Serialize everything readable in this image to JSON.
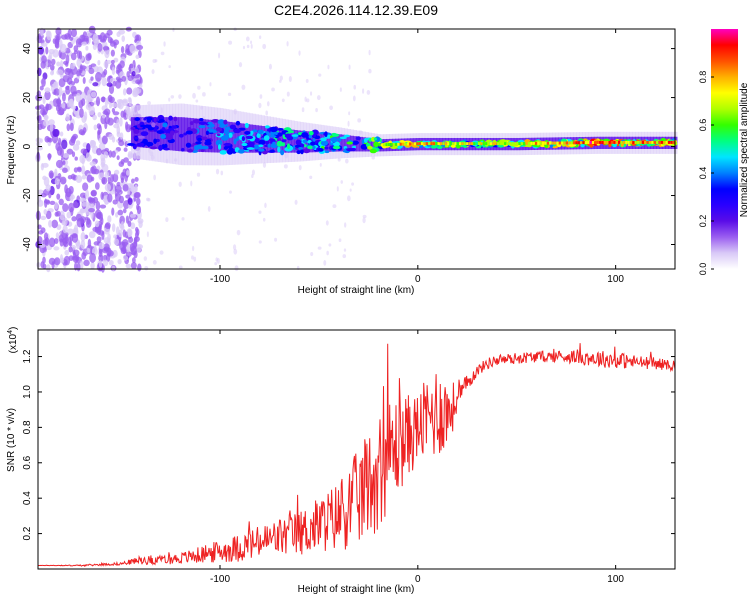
{
  "title": "C2E4.2026.114.12.39.E09",
  "chart_data": [
    {
      "type": "heatmap",
      "title": "C2E4.2026.114.12.39.E09",
      "xlabel": "Height of straight line (km)",
      "ylabel": "Frequency (Hz)",
      "xlim": [
        -192,
        130
      ],
      "ylim": [
        -50,
        48
      ],
      "xticks": [
        -100,
        0,
        100
      ],
      "yticks": [
        -40,
        -20,
        0,
        20,
        40
      ],
      "xtick_labels": [
        "-100",
        "0",
        "100"
      ],
      "ytick_labels": [
        "-40",
        "-20",
        "0",
        "20",
        "40"
      ],
      "colorbar": {
        "label": "Normalized spectral amplitude",
        "range": [
          0.0,
          1.0
        ],
        "ticks": [
          0.0,
          0.2,
          0.4,
          0.6,
          0.8
        ],
        "tick_labels": [
          "0.0",
          "0.2",
          "0.4",
          "0.6",
          "0.8"
        ],
        "colormap": [
          "#ffffff",
          "#d9c9f7",
          "#9a5ef0",
          "#5a0ce8",
          "#2a00ff",
          "#0000ff",
          "#0080ff",
          "#00e5ff",
          "#00ff80",
          "#33ff00",
          "#b0ff00",
          "#ffff00",
          "#ffb000",
          "#ff5000",
          "#ff0000",
          "#ff00c0"
        ]
      },
      "signal_band": [
        {
          "x": -145,
          "center": 6,
          "width": 12,
          "level": 0.3
        },
        {
          "x": -120,
          "center": 5,
          "width": 14,
          "level": 0.35
        },
        {
          "x": -100,
          "center": 4,
          "width": 13,
          "level": 0.4
        },
        {
          "x": -80,
          "center": 3,
          "width": 11,
          "level": 0.42
        },
        {
          "x": -60,
          "center": 2,
          "width": 9,
          "level": 0.45
        },
        {
          "x": -40,
          "center": 1.5,
          "width": 7,
          "level": 0.5
        },
        {
          "x": -20,
          "center": 0.5,
          "width": 5,
          "level": 0.6
        },
        {
          "x": 0,
          "center": 1,
          "width": 5,
          "level": 0.75
        },
        {
          "x": 20,
          "center": 1,
          "width": 5,
          "level": 0.6
        },
        {
          "x": 50,
          "center": 1,
          "width": 5,
          "level": 0.65
        },
        {
          "x": 90,
          "center": 1.5,
          "width": 5,
          "level": 0.8
        },
        {
          "x": 130,
          "center": 1.5,
          "width": 5,
          "level": 0.7
        }
      ]
    },
    {
      "type": "line",
      "xlabel": "Height of straight line (km)",
      "ylabel": "SNR (10 * v/v)",
      "multiplier_label": "(x10",
      "multiplier_exp": "4",
      "multiplier_close": ")",
      "xlim": [
        -192,
        130
      ],
      "ylim": [
        0,
        1.35
      ],
      "xticks": [
        -100,
        0,
        100
      ],
      "yticks": [
        0.2,
        0.4,
        0.6,
        0.8,
        1.0,
        1.2
      ],
      "xtick_labels": [
        "-100",
        "0",
        "100"
      ],
      "ytick_labels": [
        "0.2",
        "0.4",
        "0.6",
        "0.8",
        "1.0",
        "1.2"
      ],
      "color": "#ee2222",
      "series": [
        {
          "name": "SNR",
          "x": [
            -192,
            -170,
            -150,
            -140,
            -130,
            -120,
            -110,
            -100,
            -90,
            -80,
            -70,
            -60,
            -50,
            -40,
            -35,
            -30,
            -25,
            -20,
            -15,
            -10,
            -5,
            0,
            5,
            10,
            15,
            20,
            25,
            30,
            35,
            40,
            50,
            60,
            70,
            80,
            90,
            100,
            110,
            120,
            130
          ],
          "y": [
            0.02,
            0.02,
            0.03,
            0.05,
            0.05,
            0.06,
            0.08,
            0.1,
            0.12,
            0.15,
            0.18,
            0.2,
            0.25,
            0.3,
            0.35,
            0.4,
            0.48,
            0.55,
            0.65,
            0.7,
            0.75,
            0.8,
            0.85,
            0.9,
            0.88,
            0.95,
            1.05,
            1.12,
            1.16,
            1.18,
            1.19,
            1.2,
            1.2,
            1.2,
            1.19,
            1.18,
            1.17,
            1.16,
            1.15
          ],
          "noise": [
            0.0,
            0.005,
            0.01,
            0.03,
            0.03,
            0.04,
            0.06,
            0.08,
            0.1,
            0.12,
            0.14,
            0.16,
            0.2,
            0.25,
            0.3,
            0.35,
            0.38,
            0.42,
            0.4,
            0.35,
            0.3,
            0.25,
            0.3,
            0.35,
            0.25,
            0.12,
            0.06,
            0.04,
            0.04,
            0.04,
            0.04,
            0.04,
            0.04,
            0.05,
            0.06,
            0.06,
            0.05,
            0.04,
            0.04
          ]
        }
      ]
    }
  ]
}
